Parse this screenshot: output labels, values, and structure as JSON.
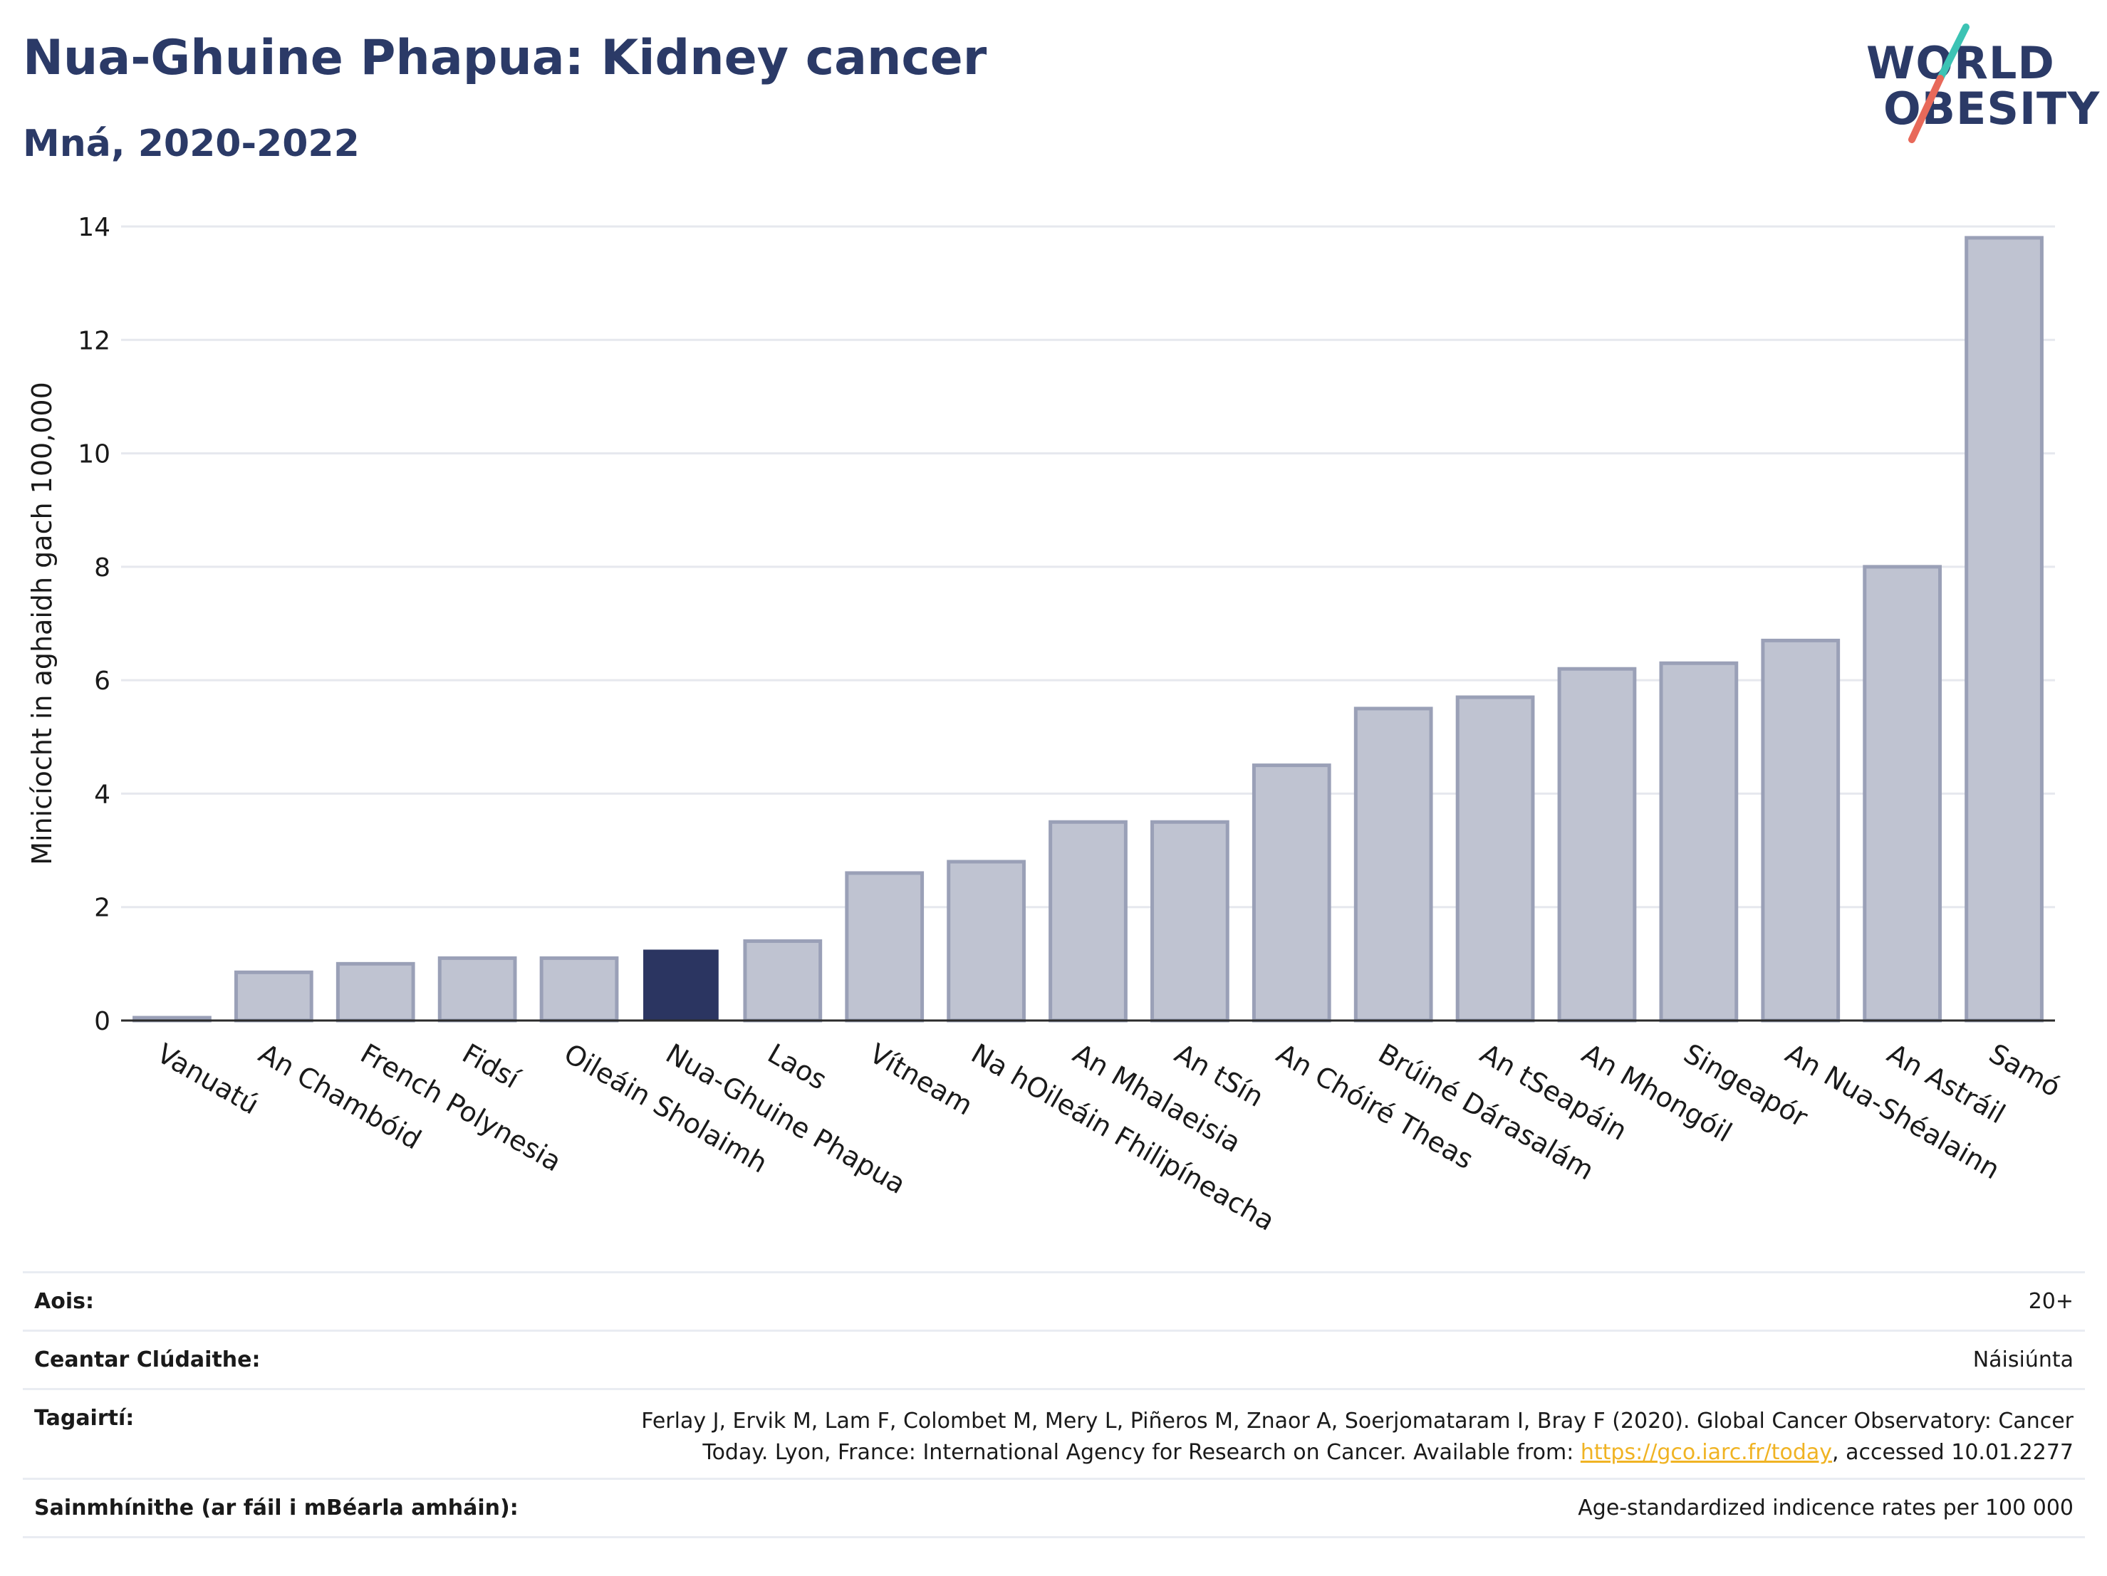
{
  "header": {
    "title": "Nua-Ghuine Phapua: Kidney cancer",
    "subtitle": "Mná, 2020-2022"
  },
  "logo": {
    "line1": "WORLD",
    "line2": "OBESITY"
  },
  "colors": {
    "highlight_bar": "#2b3561",
    "bar_fill": "#bfc3d1",
    "bar_stroke": "#9aa0b7",
    "title": "#2b3a67",
    "logo_teal": "#3cc3b4",
    "logo_coral": "#e8695a"
  },
  "chart_data": {
    "type": "bar",
    "ylabel": "Minicíocht in aghaidh gach 100,000",
    "ylim": [
      0,
      14
    ],
    "yticks": [
      0,
      2,
      4,
      6,
      8,
      10,
      12,
      14
    ],
    "grid": true,
    "highlight": "Nua-Ghuine Phapua",
    "categories": [
      "Vanuatú",
      "An Chambóid",
      "French Polynesia",
      "Fidsí",
      "Oileáin Sholaimh",
      "Nua-Ghuine Phapua",
      "Laos",
      "Vítneam",
      "Na hOileáin Fhilipíneacha",
      "An Mhalaeisia",
      "An tSín",
      "An Chóiré Theas",
      "Brúiné Dárasalám",
      "An tSeapáin",
      "An Mhongóil",
      "Singeapór",
      "An Nua-Shéalainn",
      "An Astráil",
      "Samó"
    ],
    "values": [
      0.05,
      0.85,
      1.0,
      1.1,
      1.1,
      1.25,
      1.4,
      2.6,
      2.8,
      3.5,
      3.5,
      4.5,
      5.5,
      5.7,
      6.2,
      6.3,
      6.7,
      8.0,
      13.8
    ]
  },
  "meta": {
    "age_label": "Aois:",
    "age_value": "20+",
    "coverage_label": "Ceantar Clúdaithe:",
    "coverage_value": "Náisiúnta",
    "refs_label": "Tagairtí:",
    "refs_line1": "Ferlay J, Ervik M, Lam F, Colombet M, Mery L, Piñeros M, Znaor A, Soerjomataram I, Bray F (2020). Global Cancer Observatory: Cancer",
    "refs_line2_pre": "Today. Lyon, France: International Agency for Research on Cancer. Available from: ",
    "refs_link": "https://gco.iarc.fr/today",
    "refs_line2_post": ", accessed 10.01.2277",
    "defs_label": "Sainmhínithe (ar fáil i mBéarla amháin):",
    "defs_value": "Age-standardized indicence rates per 100 000"
  }
}
